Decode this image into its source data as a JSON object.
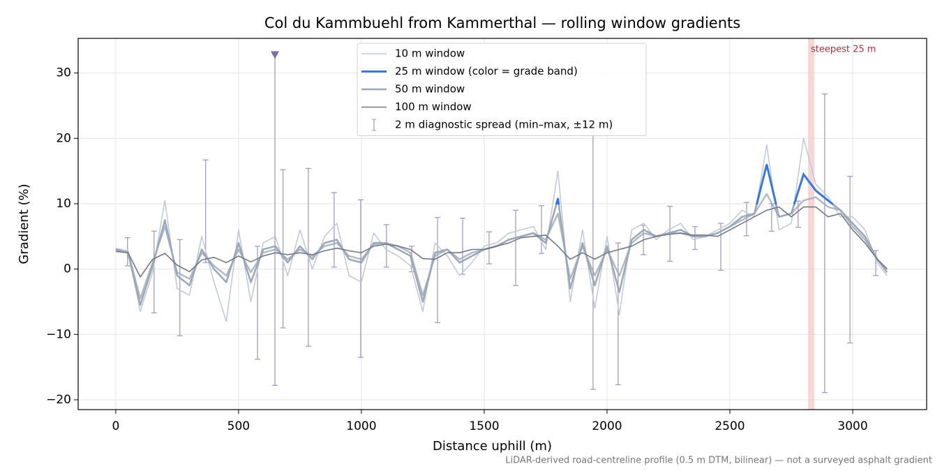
{
  "chart_data": {
    "type": "line",
    "title": "Col du Kammbuehl from Kammerthal — rolling window gradients",
    "xlabel": "Distance uphill (m)",
    "ylabel": "Gradient (%)",
    "note": "LiDAR-derived road-centreline profile (0.5 m DTM, bilinear) — not a surveyed asphalt gradient",
    "xlim": [
      -153,
      3301
    ],
    "ylim": [
      -21.5,
      35.3
    ],
    "xticks": [
      0,
      500,
      1000,
      1500,
      2000,
      2500,
      3000
    ],
    "yticks": [
      {
        "value": -20,
        "label": "−20"
      },
      {
        "value": -10,
        "label": "−10"
      },
      0,
      10,
      20,
      30
    ],
    "grid": true,
    "legend": "upper center",
    "x": [
      0,
      50,
      100,
      150,
      200,
      250,
      300,
      350,
      400,
      450,
      500,
      550,
      600,
      650,
      700,
      750,
      800,
      850,
      900,
      950,
      1000,
      1050,
      1100,
      1150,
      1200,
      1250,
      1300,
      1350,
      1400,
      1450,
      1500,
      1550,
      1600,
      1650,
      1700,
      1750,
      1800,
      1850,
      1900,
      1950,
      2000,
      2050,
      2100,
      2150,
      2200,
      2250,
      2300,
      2350,
      2400,
      2450,
      2500,
      2550,
      2600,
      2650,
      2700,
      2750,
      2800,
      2850,
      2900,
      2950,
      3000,
      3050,
      3100,
      3140
    ],
    "series": [
      {
        "name": "10 m window",
        "color": "#c4cad4",
        "values": [
          3.2,
          2.8,
          -6.5,
          -0.5,
          10.5,
          -3.0,
          -4.0,
          5.0,
          -2.0,
          -8.0,
          6.0,
          -5.0,
          4.0,
          5.0,
          -1.0,
          6.0,
          0.0,
          5.0,
          7.0,
          -1.0,
          -2.0,
          5.5,
          3.0,
          2.0,
          0.5,
          -6.5,
          4.0,
          2.0,
          -1.0,
          1.0,
          3.5,
          4.0,
          5.5,
          6.0,
          6.5,
          3.0,
          15.0,
          -5.0,
          6.0,
          -6.0,
          5.0,
          -7.0,
          6.0,
          7.0,
          4.5,
          6.0,
          7.0,
          4.5,
          5.0,
          6.0,
          7.0,
          9.0,
          8.0,
          19.0,
          6.0,
          7.0,
          20.0,
          13.0,
          11.0,
          8.0,
          8.0,
          6.0,
          1.0,
          -1.0
        ]
      },
      {
        "name": "25 m window (color = grade band)",
        "color": "#95a0b0",
        "band_color": "#3a78d8",
        "band_threshold": 10,
        "values": [
          3.0,
          2.5,
          -5.5,
          0.5,
          7.5,
          -1.0,
          -2.5,
          3.0,
          0.0,
          -2.0,
          4.0,
          -2.0,
          3.0,
          3.5,
          1.0,
          3.5,
          1.5,
          4.0,
          4.5,
          1.5,
          1.0,
          4.0,
          4.0,
          3.0,
          2.0,
          -5.0,
          2.5,
          3.0,
          1.0,
          2.0,
          3.0,
          3.5,
          4.5,
          5.0,
          5.5,
          4.0,
          10.8,
          -3.0,
          4.0,
          -2.5,
          3.5,
          -3.5,
          4.5,
          6.0,
          5.0,
          5.5,
          6.0,
          5.0,
          5.0,
          5.5,
          6.5,
          8.0,
          8.5,
          16.0,
          8.0,
          8.5,
          14.5,
          12.0,
          10.5,
          9.0,
          7.0,
          5.0,
          1.5,
          -0.5
        ]
      },
      {
        "name": "50 m window",
        "color": "#9ba6b7",
        "values": [
          2.8,
          2.6,
          -4.5,
          1.0,
          6.5,
          -0.5,
          -1.5,
          2.5,
          0.5,
          -1.0,
          3.0,
          -0.5,
          2.5,
          3.0,
          1.5,
          3.0,
          2.0,
          3.5,
          4.0,
          2.0,
          1.5,
          3.8,
          4.0,
          3.5,
          2.5,
          -4.0,
          2.0,
          3.0,
          1.5,
          2.5,
          3.0,
          3.5,
          4.5,
          5.0,
          5.5,
          4.5,
          8.5,
          -1.5,
          3.5,
          -1.0,
          3.0,
          -1.0,
          4.0,
          5.5,
          5.0,
          5.5,
          5.5,
          5.0,
          5.0,
          5.5,
          6.5,
          7.5,
          8.5,
          11.5,
          8.0,
          8.5,
          10.5,
          11.0,
          9.5,
          9.0,
          6.5,
          4.5,
          1.5,
          0.0
        ]
      },
      {
        "name": "100 m window",
        "color": "#737887",
        "values": [
          2.7,
          2.5,
          -1.2,
          1.5,
          2.4,
          0.6,
          -0.4,
          1.4,
          1.8,
          1.0,
          2.0,
          1.1,
          2.0,
          2.5,
          2.2,
          2.5,
          2.2,
          2.8,
          3.2,
          2.8,
          2.5,
          3.5,
          3.8,
          3.5,
          3.0,
          1.6,
          1.5,
          2.5,
          2.5,
          3.0,
          3.0,
          3.5,
          4.0,
          4.8,
          5.0,
          5.2,
          3.5,
          1.5,
          2.5,
          1.5,
          2.5,
          3.0,
          3.5,
          4.5,
          5.0,
          5.3,
          5.5,
          5.2,
          5.2,
          5.0,
          6.0,
          7.0,
          8.0,
          9.0,
          9.5,
          8.0,
          9.5,
          9.5,
          8.0,
          8.5,
          6.0,
          4.0,
          1.5,
          0.0
        ]
      }
    ],
    "spread": {
      "name": "2 m diagnostic spread (min–max, ±12 m)",
      "color": "#a39cc0",
      "x": [
        48,
        156,
        261,
        366,
        577,
        648,
        681,
        784,
        889,
        997,
        1102,
        1205,
        1310,
        1412,
        1520,
        1628,
        1733,
        1943,
        2045,
        2148,
        2256,
        2358,
        2463,
        2568,
        2670,
        2778,
        2886,
        2989,
        3094
      ],
      "low": [
        0.5,
        -6.7,
        -10.2,
        1.0,
        -13.8,
        -17.8,
        -9.0,
        -11.8,
        0.3,
        -13.5,
        0.3,
        -0.4,
        -8.2,
        -0.8,
        0.8,
        -2.5,
        2.4,
        -18.4,
        -17.7,
        2.2,
        1.2,
        3.0,
        -0.2,
        5.1,
        5.8,
        6.4,
        -18.9,
        -11.3,
        -1.0
      ],
      "high": [
        4.8,
        5.8,
        4.5,
        16.7,
        3.5,
        32.8,
        15.2,
        15.4,
        11.7,
        10.6,
        6.8,
        3.5,
        7.9,
        7.8,
        5.7,
        9.0,
        9.7,
        21.0,
        4.0,
        6.7,
        9.6,
        6.5,
        7.0,
        10.2,
        10.0,
        10.4,
        26.8,
        14.2,
        2.8
      ]
    },
    "peak_marker": {
      "x": 648,
      "y": 32.8,
      "color": "#7d6eab"
    },
    "highlight": {
      "label": "steepest 25 m",
      "x": [
        2818,
        2844
      ],
      "color": "#f2c4c4",
      "text_color": "#c8283c"
    }
  }
}
